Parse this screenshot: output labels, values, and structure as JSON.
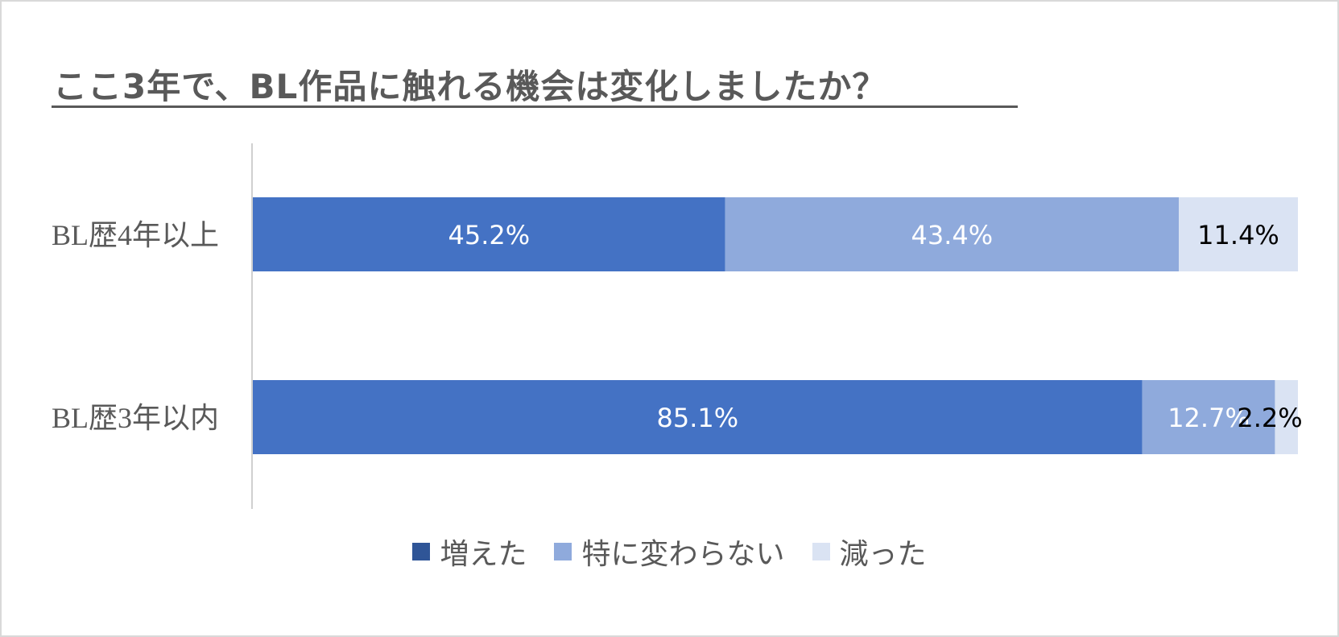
{
  "colors": {
    "increased": "#4472C4",
    "no_change": "#8FAADC",
    "decreased": "#DAE3F3",
    "increased_legend": "#2F5597",
    "axis": "#d0d0d0",
    "label_dark": "#000000",
    "label_light": "#ffffff"
  },
  "chart_data": {
    "type": "bar",
    "orientation": "horizontal",
    "stacked": "percent",
    "title": "ここ3年で、BL作品に触れる機会は変化しましたか？",
    "categories": [
      "BL歴4年以上",
      "BL歴3年以内"
    ],
    "series": [
      {
        "name": "増えた",
        "values": [
          45.2,
          85.1
        ],
        "labels": [
          "45.2%",
          "85.1%"
        ]
      },
      {
        "name": "特に変わらない",
        "values": [
          43.4,
          12.7
        ],
        "labels": [
          "43.4%",
          "12.7%"
        ]
      },
      {
        "name": "減った",
        "values": [
          11.4,
          2.2
        ],
        "labels": [
          "11.4%",
          "2.2%"
        ]
      }
    ],
    "xlim": [
      0,
      100
    ],
    "grid": false,
    "legend_position": "bottom"
  }
}
